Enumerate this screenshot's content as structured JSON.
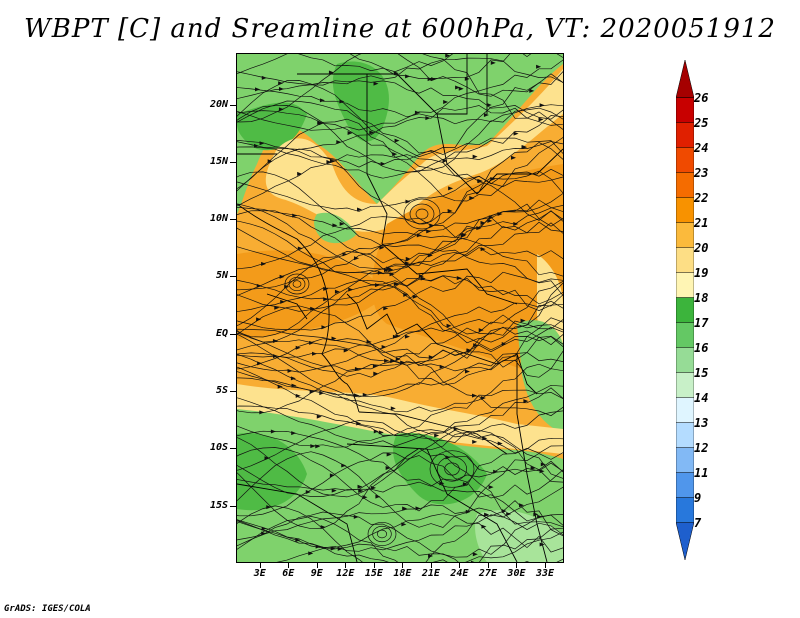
{
  "title": "WBPT [C] and Sreamline at 600hPa, VT: 2020051912",
  "credit": "GrADS: IGES/COLA",
  "lat_labels": [
    "20N",
    "15N",
    "10N",
    "5N",
    "EQ",
    "5S",
    "10S",
    "15S"
  ],
  "lat_values": [
    20,
    15,
    10,
    5,
    0,
    -5,
    -10,
    -15
  ],
  "lon_labels": [
    "3E",
    "6E",
    "9E",
    "12E",
    "15E",
    "18E",
    "21E",
    "24E",
    "27E",
    "30E",
    "33E"
  ],
  "lon_values": [
    3,
    6,
    9,
    12,
    15,
    18,
    21,
    24,
    27,
    30,
    33
  ],
  "map_extent": {
    "lon": [
      0.5,
      35
    ],
    "lat": [
      -20,
      24.5
    ]
  },
  "colorbar": {
    "labels": [
      "26",
      "25",
      "24",
      "23",
      "22",
      "21",
      "20",
      "19",
      "18",
      "17",
      "16",
      "15",
      "14",
      "13",
      "12",
      "11",
      "9",
      "7"
    ],
    "colors": [
      "#a50000",
      "#c80000",
      "#e02000",
      "#f04a00",
      "#f56c00",
      "#f89200",
      "#fbba3c",
      "#fdde85",
      "#fff5b4",
      "#3cb43c",
      "#64c864",
      "#96dc96",
      "#c8f0c8",
      "#dff5ff",
      "#b4dcff",
      "#82b9f5",
      "#5096eb",
      "#2878dc",
      "#1e5fcd"
    ]
  },
  "field_colors": {
    "orange_dark": "#f39b1a",
    "orange": "#f8ad33",
    "light_orange": "#fbc564",
    "yellow": "#fde28e",
    "green": "#7fd26c",
    "green_dark": "#4fbb45",
    "green_light": "#a8e49a"
  }
}
